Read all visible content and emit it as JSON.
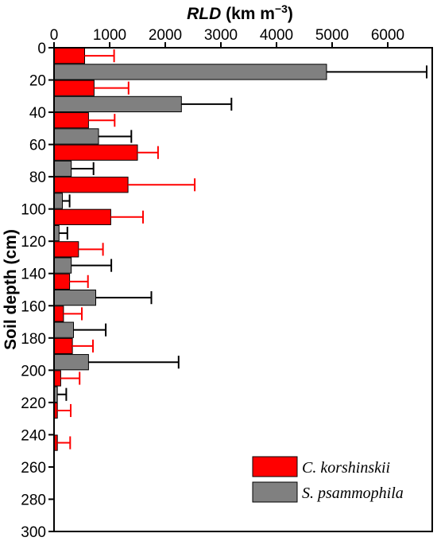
{
  "chart_data": {
    "type": "bar",
    "orientation": "horizontal",
    "title": "",
    "xlabel": {
      "italic": "RLD",
      "rest": " (km m",
      "sup": "−3",
      "close": ")"
    },
    "ylabel": "Soil depth (cm)",
    "x_axis_position": "top",
    "xlim": [
      0,
      6800
    ],
    "ylim": [
      0,
      300
    ],
    "x_ticks": [
      0,
      1000,
      2000,
      3000,
      4000,
      5000,
      6000
    ],
    "y_ticks": [
      0,
      20,
      40,
      60,
      80,
      100,
      120,
      140,
      160,
      180,
      200,
      220,
      240,
      260,
      280,
      300
    ],
    "grid": false,
    "legend_position": "bottom-right",
    "categories": [
      0,
      20,
      40,
      60,
      80,
      100,
      120,
      140,
      160,
      180,
      200,
      220,
      240
    ],
    "series": [
      {
        "name": "C. korshinskii",
        "color": "#ff0000",
        "error_color": "#ff0000",
        "values": [
          550,
          720,
          620,
          1500,
          1330,
          1020,
          440,
          280,
          170,
          330,
          120,
          60,
          60
        ],
        "errors": [
          530,
          620,
          470,
          370,
          1200,
          580,
          440,
          330,
          330,
          370,
          340,
          240,
          230
        ]
      },
      {
        "name": "S. psammophila",
        "color": "#808080",
        "error_color": "#000000",
        "values": [
          4900,
          2290,
          800,
          310,
          150,
          90,
          310,
          750,
          350,
          620,
          60,
          0,
          0
        ],
        "errors": [
          1800,
          900,
          590,
          400,
          130,
          150,
          720,
          1000,
          580,
          1620,
          160,
          0,
          0
        ]
      }
    ]
  }
}
